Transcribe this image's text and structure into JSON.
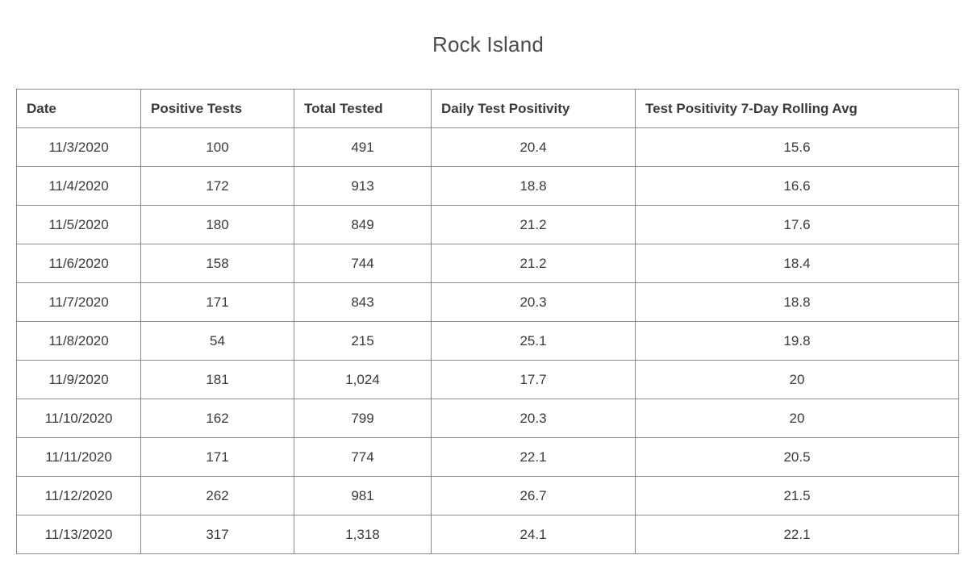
{
  "chart_data": {
    "type": "table",
    "title": "Rock Island",
    "columns": [
      "Date",
      "Positive Tests",
      "Total Tested",
      "Daily Test Positivity",
      "Test Positivity 7-Day Rolling Avg"
    ],
    "rows": [
      [
        "11/3/2020",
        "100",
        "491",
        "20.4",
        "15.6"
      ],
      [
        "11/4/2020",
        "172",
        "913",
        "18.8",
        "16.6"
      ],
      [
        "11/5/2020",
        "180",
        "849",
        "21.2",
        "17.6"
      ],
      [
        "11/6/2020",
        "158",
        "744",
        "21.2",
        "18.4"
      ],
      [
        "11/7/2020",
        "171",
        "843",
        "20.3",
        "18.8"
      ],
      [
        "11/8/2020",
        "54",
        "215",
        "25.1",
        "19.8"
      ],
      [
        "11/9/2020",
        "181",
        "1,024",
        "17.7",
        "20"
      ],
      [
        "11/10/2020",
        "162",
        "799",
        "20.3",
        "20"
      ],
      [
        "11/11/2020",
        "171",
        "774",
        "22.1",
        "20.5"
      ],
      [
        "11/12/2020",
        "262",
        "981",
        "26.7",
        "21.5"
      ],
      [
        "11/13/2020",
        "317",
        "1,318",
        "24.1",
        "22.1"
      ]
    ]
  }
}
